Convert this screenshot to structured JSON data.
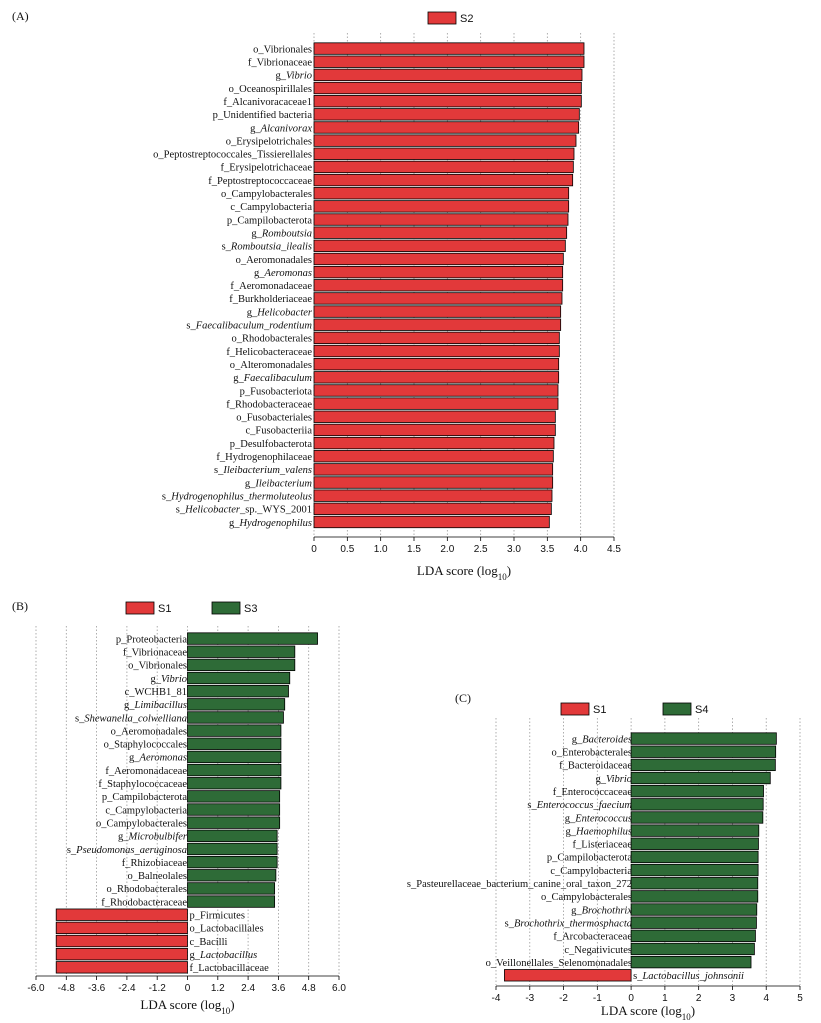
{
  "colors": {
    "red": "#e2393a",
    "green": "#2e6b37",
    "grid": "#9a9a9a"
  },
  "axis_title": {
    "main": "LDA score (log",
    "sub": "10",
    "close": ")"
  },
  "chart_data": [
    {
      "type": "bar",
      "panel_label": "(A)",
      "legend": [
        {
          "name": "S2",
          "color": "red"
        }
      ],
      "xlim": [
        0,
        4.5
      ],
      "xticks": [
        "0",
        "0.5",
        "1.0",
        "1.5",
        "2.0",
        "2.5",
        "3.0",
        "3.5",
        "4.0",
        "4.5"
      ],
      "xlabel": "LDA score (log10)",
      "categories": [
        {
          "prefix": "o_",
          "name": "Vibrionales",
          "italic": false,
          "suffix": "",
          "value": 4.05,
          "group": "S2"
        },
        {
          "prefix": "f_",
          "name": "Vibrionaceae",
          "italic": false,
          "suffix": "",
          "value": 4.05,
          "group": "S2"
        },
        {
          "prefix": "g_",
          "name": "Vibrio",
          "italic": true,
          "suffix": "",
          "value": 4.02,
          "group": "S2"
        },
        {
          "prefix": "o_",
          "name": "Oceanospirillales",
          "italic": false,
          "suffix": "",
          "value": 4.01,
          "group": "S2"
        },
        {
          "prefix": "f_",
          "name": "Alcanivoracaceae1",
          "italic": false,
          "suffix": "",
          "value": 4.01,
          "group": "S2"
        },
        {
          "prefix": "p_",
          "name": "Unidentified bacteria",
          "italic": false,
          "suffix": "",
          "value": 3.98,
          "group": "S2"
        },
        {
          "prefix": "g_",
          "name": "Alcanivorax",
          "italic": true,
          "suffix": "",
          "value": 3.97,
          "group": "S2"
        },
        {
          "prefix": "o_",
          "name": "Erysipelotrichales",
          "italic": false,
          "suffix": "",
          "value": 3.93,
          "group": "S2"
        },
        {
          "prefix": "o_",
          "name": "Peptostreptococcales_Tissierellales",
          "italic": false,
          "suffix": "",
          "value": 3.9,
          "group": "S2"
        },
        {
          "prefix": "f_",
          "name": "Erysipelotrichaceae",
          "italic": false,
          "suffix": "",
          "value": 3.89,
          "group": "S2"
        },
        {
          "prefix": "f_",
          "name": "Peptostreptococcaceae",
          "italic": false,
          "suffix": "",
          "value": 3.88,
          "group": "S2"
        },
        {
          "prefix": "o_",
          "name": "Campylobacterales",
          "italic": false,
          "suffix": "",
          "value": 3.82,
          "group": "S2"
        },
        {
          "prefix": "c_",
          "name": "Campylobacteria",
          "italic": false,
          "suffix": "",
          "value": 3.82,
          "group": "S2"
        },
        {
          "prefix": "p_",
          "name": "Campilobacterota",
          "italic": false,
          "suffix": "",
          "value": 3.81,
          "group": "S2"
        },
        {
          "prefix": "g_",
          "name": "Romboutsia",
          "italic": true,
          "suffix": "",
          "value": 3.79,
          "group": "S2"
        },
        {
          "prefix": "s_",
          "name": "Romboutsia_ilealis",
          "italic": true,
          "suffix": "",
          "value": 3.77,
          "group": "S2"
        },
        {
          "prefix": "o_",
          "name": "Aeromonadales",
          "italic": false,
          "suffix": "",
          "value": 3.74,
          "group": "S2"
        },
        {
          "prefix": "g_",
          "name": "Aeromonas",
          "italic": true,
          "suffix": "",
          "value": 3.73,
          "group": "S2"
        },
        {
          "prefix": "f_",
          "name": "Aeromonadaceae",
          "italic": false,
          "suffix": "",
          "value": 3.73,
          "group": "S2"
        },
        {
          "prefix": "f_",
          "name": "Burkholderiaceae",
          "italic": false,
          "suffix": "",
          "value": 3.72,
          "group": "S2"
        },
        {
          "prefix": "g_",
          "name": "Helicobacter",
          "italic": true,
          "suffix": "",
          "value": 3.7,
          "group": "S2"
        },
        {
          "prefix": "s_",
          "name": "Faecalibaculum_rodentium",
          "italic": true,
          "suffix": "",
          "value": 3.7,
          "group": "S2"
        },
        {
          "prefix": "o_",
          "name": "Rhodobacterales",
          "italic": false,
          "suffix": "",
          "value": 3.68,
          "group": "S2"
        },
        {
          "prefix": "f_",
          "name": "Helicobacteraceae",
          "italic": false,
          "suffix": "",
          "value": 3.68,
          "group": "S2"
        },
        {
          "prefix": "o_",
          "name": "Alteromonadales",
          "italic": false,
          "suffix": "",
          "value": 3.67,
          "group": "S2"
        },
        {
          "prefix": "g_",
          "name": "Faecalibaculum",
          "italic": true,
          "suffix": "",
          "value": 3.67,
          "group": "S2"
        },
        {
          "prefix": "p_",
          "name": "Fusobacteriota",
          "italic": false,
          "suffix": "",
          "value": 3.66,
          "group": "S2"
        },
        {
          "prefix": "f_",
          "name": "Rhodobacteraceae",
          "italic": false,
          "suffix": "",
          "value": 3.66,
          "group": "S2"
        },
        {
          "prefix": "o_",
          "name": "Fusobacteriales",
          "italic": false,
          "suffix": "",
          "value": 3.62,
          "group": "S2"
        },
        {
          "prefix": "c_",
          "name": "Fusobacteriia",
          "italic": false,
          "suffix": "",
          "value": 3.62,
          "group": "S2"
        },
        {
          "prefix": "p_",
          "name": "Desulfobacterota",
          "italic": false,
          "suffix": "",
          "value": 3.6,
          "group": "S2"
        },
        {
          "prefix": "f_",
          "name": "Hydrogenophilaceae",
          "italic": false,
          "suffix": "",
          "value": 3.59,
          "group": "S2"
        },
        {
          "prefix": "s_",
          "name": "Ileibacterium_valens",
          "italic": true,
          "suffix": "",
          "value": 3.58,
          "group": "S2"
        },
        {
          "prefix": "g_",
          "name": "Ileibacterium",
          "italic": true,
          "suffix": "",
          "value": 3.58,
          "group": "S2"
        },
        {
          "prefix": "s_",
          "name": "Hydrogenophilus_thermoluteolus",
          "italic": true,
          "suffix": "",
          "value": 3.57,
          "group": "S2"
        },
        {
          "prefix": "s_",
          "name": "Helicobacter",
          "italic": true,
          "suffix": "_sp._WYS_2001",
          "value": 3.56,
          "group": "S2"
        },
        {
          "prefix": "g_",
          "name": "Hydrogenophilus",
          "italic": true,
          "suffix": "",
          "value": 3.53,
          "group": "S2"
        }
      ]
    },
    {
      "type": "bar",
      "panel_label": "(B)",
      "legend": [
        {
          "name": "S1",
          "color": "red"
        },
        {
          "name": "S3",
          "color": "green"
        }
      ],
      "xlim": [
        -6.0,
        6.0
      ],
      "xticks": [
        "-6.0",
        "-4.8",
        "-3.6",
        "-2.4",
        "-1.2",
        "0",
        "1.2",
        "2.4",
        "3.6",
        "4.8",
        "6.0"
      ],
      "xlabel": "LDA score (log10)",
      "categories": [
        {
          "prefix": "p_",
          "name": "Proteobacteria",
          "italic": false,
          "suffix": "",
          "value": 5.15,
          "group": "S3"
        },
        {
          "prefix": "f_",
          "name": "Vibrionaceae",
          "italic": false,
          "suffix": "",
          "value": 4.25,
          "group": "S3"
        },
        {
          "prefix": "o_",
          "name": "Vibrionales",
          "italic": false,
          "suffix": "",
          "value": 4.25,
          "group": "S3"
        },
        {
          "prefix": "g_",
          "name": "Vibrio",
          "italic": true,
          "suffix": "",
          "value": 4.05,
          "group": "S3"
        },
        {
          "prefix": "c_",
          "name": "WCHB1_81",
          "italic": false,
          "suffix": "",
          "value": 4.0,
          "group": "S3"
        },
        {
          "prefix": "g_",
          "name": "Limibacillus",
          "italic": true,
          "suffix": "",
          "value": 3.85,
          "group": "S3"
        },
        {
          "prefix": "s_",
          "name": "Shewanella_colwelliana",
          "italic": true,
          "suffix": "",
          "value": 3.8,
          "group": "S3"
        },
        {
          "prefix": "o_",
          "name": "Aeromonadales",
          "italic": false,
          "suffix": "",
          "value": 3.7,
          "group": "S3"
        },
        {
          "prefix": "o_",
          "name": "Staphylococcales",
          "italic": false,
          "suffix": "",
          "value": 3.7,
          "group": "S3"
        },
        {
          "prefix": "g_",
          "name": "Aeromonas",
          "italic": true,
          "suffix": "",
          "value": 3.7,
          "group": "S3"
        },
        {
          "prefix": "f_",
          "name": "Aeromonadaceae",
          "italic": false,
          "suffix": "",
          "value": 3.7,
          "group": "S3"
        },
        {
          "prefix": "f_",
          "name": "Staphylococcaceae",
          "italic": false,
          "suffix": "",
          "value": 3.7,
          "group": "S3"
        },
        {
          "prefix": "p_",
          "name": "Campilobacterota",
          "italic": false,
          "suffix": "",
          "value": 3.65,
          "group": "S3"
        },
        {
          "prefix": "c_",
          "name": "Campylobacteria",
          "italic": false,
          "suffix": "",
          "value": 3.65,
          "group": "S3"
        },
        {
          "prefix": "o_",
          "name": "Campylobacterales",
          "italic": false,
          "suffix": "",
          "value": 3.65,
          "group": "S3"
        },
        {
          "prefix": "g_",
          "name": "Microbulbifer",
          "italic": true,
          "suffix": "",
          "value": 3.55,
          "group": "S3"
        },
        {
          "prefix": "s_",
          "name": "Pseudomonas_aeruginosa",
          "italic": true,
          "suffix": "",
          "value": 3.55,
          "group": "S3"
        },
        {
          "prefix": "f_",
          "name": "Rhizobiaceae",
          "italic": false,
          "suffix": "",
          "value": 3.55,
          "group": "S3"
        },
        {
          "prefix": "o_",
          "name": "Balneolales",
          "italic": false,
          "suffix": "",
          "value": 3.5,
          "group": "S3"
        },
        {
          "prefix": "o_",
          "name": "Rhodobacterales",
          "italic": false,
          "suffix": "",
          "value": 3.45,
          "group": "S3"
        },
        {
          "prefix": "f_",
          "name": "Rhodobacteraceae",
          "italic": false,
          "suffix": "",
          "value": 3.45,
          "group": "S3"
        },
        {
          "prefix": "p_",
          "name": "Firmicutes",
          "italic": false,
          "suffix": "",
          "value": -5.2,
          "group": "S1"
        },
        {
          "prefix": "o_",
          "name": "Lactobacillales",
          "italic": false,
          "suffix": "",
          "value": -5.2,
          "group": "S1"
        },
        {
          "prefix": "c_",
          "name": "Bacilli",
          "italic": false,
          "suffix": "",
          "value": -5.2,
          "group": "S1"
        },
        {
          "prefix": "g_",
          "name": "Lactobacillus",
          "italic": true,
          "suffix": "",
          "value": -5.2,
          "group": "S1"
        },
        {
          "prefix": "f_",
          "name": "Lactobacillaceae",
          "italic": false,
          "suffix": "",
          "value": -5.2,
          "group": "S1"
        }
      ]
    },
    {
      "type": "bar",
      "panel_label": "(C)",
      "legend": [
        {
          "name": "S1",
          "color": "red"
        },
        {
          "name": "S4",
          "color": "green"
        }
      ],
      "xlim": [
        -4,
        5
      ],
      "xticks": [
        "-4",
        "-3",
        "-2",
        "-1",
        "0",
        "1",
        "2",
        "3",
        "4",
        "5"
      ],
      "xlabel": "LDA score (log10)",
      "categories": [
        {
          "prefix": "g_",
          "name": "Bacteroides",
          "italic": true,
          "suffix": "",
          "value": 4.3,
          "group": "S4"
        },
        {
          "prefix": "o_",
          "name": "Enterobacterales",
          "italic": false,
          "suffix": "",
          "value": 4.28,
          "group": "S4"
        },
        {
          "prefix": "f_",
          "name": "Bacteroidaceae",
          "italic": false,
          "suffix": "",
          "value": 4.27,
          "group": "S4"
        },
        {
          "prefix": "g_",
          "name": "Vibrio",
          "italic": true,
          "suffix": "",
          "value": 4.12,
          "group": "S4"
        },
        {
          "prefix": "f_",
          "name": "Enterococcaceae",
          "italic": false,
          "suffix": "",
          "value": 3.92,
          "group": "S4"
        },
        {
          "prefix": "s_",
          "name": "Enterococcus_faecium",
          "italic": true,
          "suffix": "",
          "value": 3.91,
          "group": "S4"
        },
        {
          "prefix": "g_",
          "name": "Enterococcus",
          "italic": true,
          "suffix": "",
          "value": 3.9,
          "group": "S4"
        },
        {
          "prefix": "g_",
          "name": "Haemophilus",
          "italic": true,
          "suffix": "",
          "value": 3.78,
          "group": "S4"
        },
        {
          "prefix": "f_",
          "name": "Listeriaceae",
          "italic": false,
          "suffix": "",
          "value": 3.77,
          "group": "S4"
        },
        {
          "prefix": "p_",
          "name": "Campilobacterota",
          "italic": false,
          "suffix": "",
          "value": 3.76,
          "group": "S4"
        },
        {
          "prefix": "c_",
          "name": "Campylobacteria",
          "italic": false,
          "suffix": "",
          "value": 3.76,
          "group": "S4"
        },
        {
          "prefix": "s_",
          "name": "Pasteurellaceae_bacterium_canine_oral_taxon_272",
          "italic": false,
          "suffix": "",
          "value": 3.75,
          "group": "S4"
        },
        {
          "prefix": "o_",
          "name": "Campylobacterales",
          "italic": false,
          "suffix": "",
          "value": 3.75,
          "group": "S4"
        },
        {
          "prefix": "g_",
          "name": "Brochothrix",
          "italic": true,
          "suffix": "",
          "value": 3.72,
          "group": "S4"
        },
        {
          "prefix": "s_",
          "name": "Brochothrix_thermosphacta",
          "italic": true,
          "suffix": "",
          "value": 3.71,
          "group": "S4"
        },
        {
          "prefix": "f_",
          "name": "Arcobacteraceae",
          "italic": false,
          "suffix": "",
          "value": 3.68,
          "group": "S4"
        },
        {
          "prefix": "c_",
          "name": "Negativicutes",
          "italic": false,
          "suffix": "",
          "value": 3.65,
          "group": "S4"
        },
        {
          "prefix": "o_",
          "name": "Veillonellales_Selenomonadales",
          "italic": false,
          "suffix": "",
          "value": 3.55,
          "group": "S4"
        },
        {
          "prefix": "s_",
          "name": "Lactobacillus_johnsonii",
          "italic": true,
          "suffix": "",
          "value": -3.75,
          "group": "S1"
        }
      ]
    }
  ]
}
